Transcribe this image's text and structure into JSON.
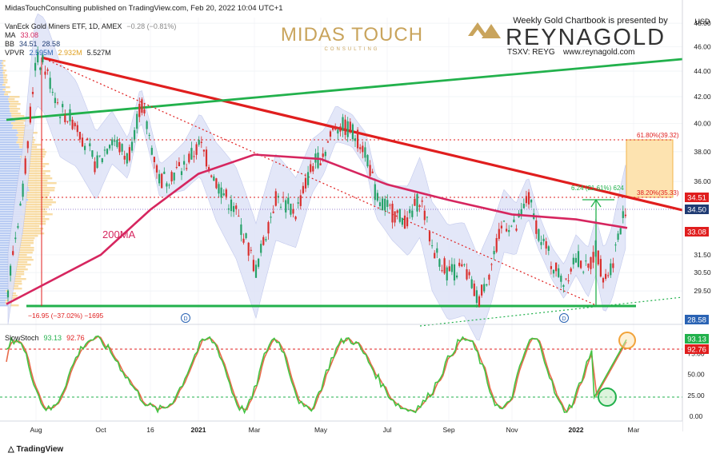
{
  "header": {
    "publisher": "MidasTouchConsulting published on TradingView.com, Feb 20, 2022 10:04 UTC+1",
    "symbol": "VanEck Gold Miners ETF, 1D, AMEX",
    "change": "−0.28 (−0.81%)",
    "ma_label": "MA",
    "ma_value": "33.08",
    "bb_label": "BB",
    "bb_upper": "34.51",
    "bb_lower": "28.58",
    "vpvr_label": "VPVR",
    "vpvr_v1": "2.595M",
    "vpvr_v2": "2.932M",
    "vpvr_v3": "5.527M"
  },
  "logos": {
    "midas": "MIDAS TOUCH",
    "midas_sub": "CONSULTING",
    "sponsor_line": "Weekly Gold Chartbook is presented by",
    "reyna": "REYNAGOLD",
    "ticker": "TSXV: REYG",
    "website": "www.reynagold.com"
  },
  "annotations": {
    "ma200": "200MA",
    "fib618": "61.80%(39.32)",
    "fib382": "38.20%(35.33)",
    "measure": "6.24 (21.61%) 624",
    "drawdown": "−16.95 (−37.02%) −1695",
    "dividend": "D"
  },
  "badges": {
    "price_upper": "34.51",
    "price_close": "34.50",
    "ma": "33.08",
    "bb_lower": "28.58",
    "stoch_k": "93.13",
    "stoch_d": "92.76"
  },
  "stoch": {
    "label": "SlowStoch",
    "k": "93.13",
    "d": "92.76"
  },
  "footer": {
    "brand": "TradingView"
  },
  "colors": {
    "trend_red": "#e01e1e",
    "trend_green": "#22b14c",
    "ma200": "#d6265f",
    "candle_up": "#26a269",
    "candle_down": "#d9302e",
    "bb_fill": "#dfe3f7",
    "fib_box": "#fde3b0",
    "stoch_k": "#43c443",
    "stoch_d": "#e86a4a"
  },
  "chart_data": [
    {
      "type": "candlestick",
      "title": "VanEck Gold Miners ETF, 1D, AMEX",
      "x": [
        "Aug",
        "Oct",
        "16",
        "2021",
        "Mar",
        "May",
        "Jul",
        "Sep",
        "Nov",
        "2022",
        "Mar"
      ],
      "y_ticks": [
        28.58,
        29.5,
        30.5,
        31.5,
        33.08,
        34.5,
        36,
        38,
        40,
        42,
        44,
        46,
        48
      ],
      "y_scale": "log",
      "ylim": [
        28.0,
        48.5
      ],
      "y_unit": "USD",
      "series": [
        {
          "name": "MA",
          "note": "200MA",
          "approx_path": [
            [
              0,
              28.8
            ],
            [
              1,
              31.5
            ],
            [
              2,
              34.2
            ],
            [
              3,
              36.5
            ],
            [
              4,
              37.8
            ],
            [
              5,
              37.5
            ],
            [
              6,
              35.8
            ],
            [
              7,
              34.8
            ],
            [
              8,
              33.9
            ],
            [
              9,
              33.6
            ],
            [
              10,
              33.08
            ]
          ]
        },
        {
          "name": "BB upper",
          "last": 34.51
        },
        {
          "name": "BB lower",
          "last": 28.58
        }
      ],
      "levels": {
        "fib_61.8": 39.32,
        "fib_38.2": 35.33,
        "support": 28.58,
        "close": 34.5
      },
      "measure": {
        "value": 6.24,
        "percent": 21.61
      },
      "drawdown": {
        "value": -16.95,
        "percent": -37.02
      }
    },
    {
      "type": "line",
      "title": "SlowStoch",
      "y_ticks": [
        0.0,
        25.0,
        50.0,
        75.0,
        100.0
      ],
      "ylim": [
        0,
        100
      ],
      "series": [
        {
          "name": "%K",
          "last": 93.13
        },
        {
          "name": "%D",
          "last": 92.76
        }
      ],
      "levels": [
        80,
        20
      ]
    }
  ]
}
